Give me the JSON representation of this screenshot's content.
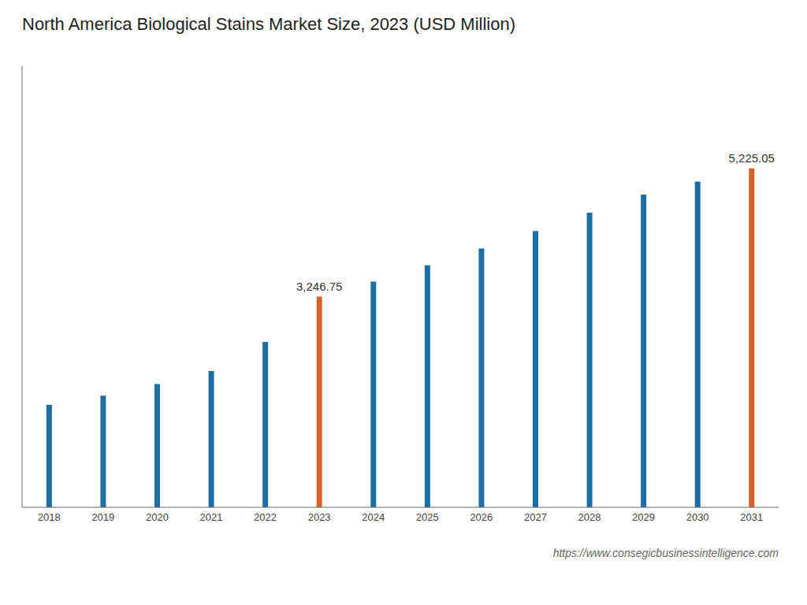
{
  "chart_data": {
    "type": "bar",
    "title": "North America Biological Stains Market Size, 2023 (USD Million)",
    "categories": [
      "2018",
      "2019",
      "2020",
      "2021",
      "2022",
      "2023",
      "2024",
      "2025",
      "2026",
      "2027",
      "2028",
      "2029",
      "2030",
      "2031"
    ],
    "values": [
      1580,
      1720,
      1900,
      2100,
      2550,
      3246.75,
      3480,
      3730,
      3990,
      4260,
      4540,
      4820,
      5020,
      5225.05
    ],
    "colors": [
      "#1c6ea4",
      "#1c6ea4",
      "#1c6ea4",
      "#1c6ea4",
      "#1c6ea4",
      "#d4622a",
      "#1c6ea4",
      "#1c6ea4",
      "#1c6ea4",
      "#1c6ea4",
      "#1c6ea4",
      "#1c6ea4",
      "#1c6ea4",
      "#d4622a"
    ],
    "ylim": [
      0,
      6800
    ],
    "tick_labels": "x",
    "grid": false,
    "annotations": [
      {
        "category": "2023",
        "text": "3,246.75"
      },
      {
        "category": "2031",
        "text": "5,225.05"
      },
      {
        "text": "https://www.consegicbusinessintelligence.com"
      }
    ]
  }
}
